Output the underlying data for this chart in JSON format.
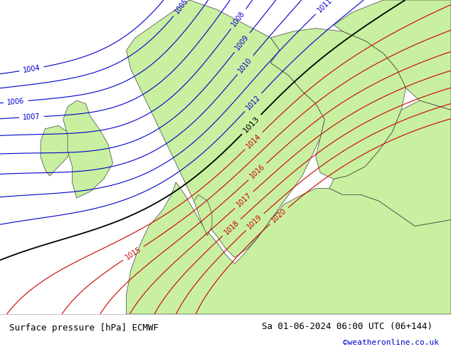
{
  "title_left": "Surface pressure [hPa] ECMWF",
  "title_right": "Sa 01-06-2024 06:00 UTC (06+144)",
  "copyright": "©weatheronline.co.uk",
  "bg_color": "#d0d0d0",
  "land_color": "#c8f0a0",
  "sea_color": "#d0d0d0",
  "border_color": "#404040",
  "coastline_color": "#404040",
  "isobar_color_blue": "#0000cc",
  "isobar_color_red": "#cc0000",
  "isobar_color_black": "#000000",
  "bottom_bar_color": "#e8e8e8",
  "fig_width": 6.34,
  "fig_height": 4.9,
  "dpi": 100,
  "font_size_title": 9,
  "font_size_copyright": 8,
  "font_size_isobar": 7,
  "font_size_isobar_black": 8,
  "pressure_levels_blue": [
    1004,
    1005,
    1006,
    1007,
    1008,
    1009,
    1010,
    1011,
    1012
  ],
  "pressure_levels_black": [
    1013
  ],
  "pressure_levels_red": [
    1014,
    1015,
    1016,
    1017,
    1018,
    1019,
    1020
  ]
}
